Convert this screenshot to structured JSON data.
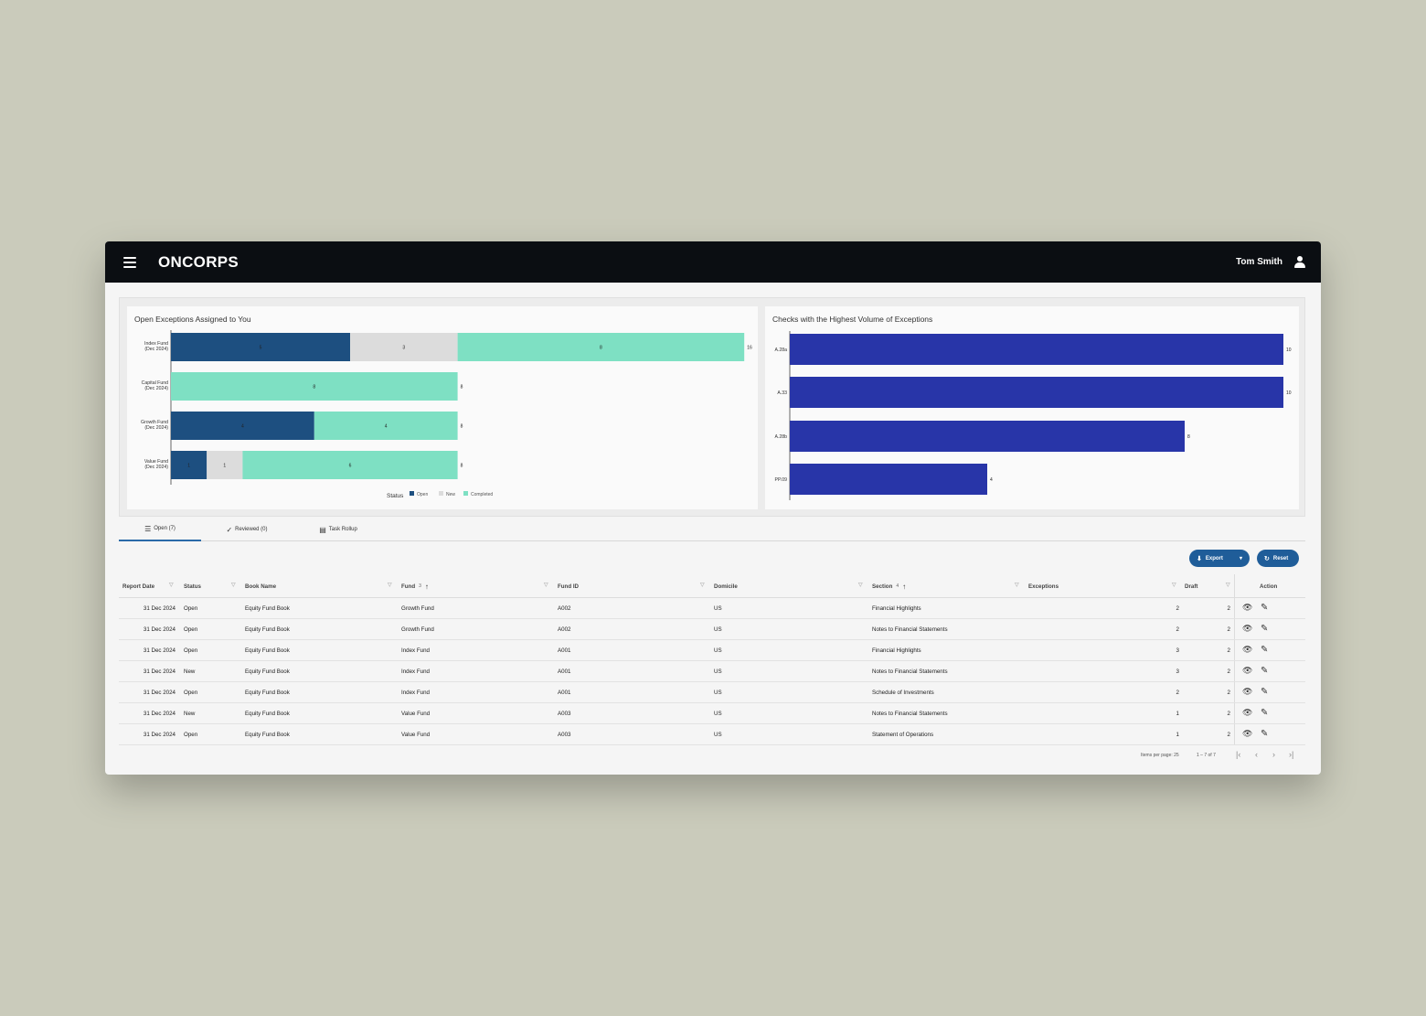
{
  "app": {
    "brand": "ONCORPS",
    "user_name": "Tom Smith"
  },
  "chart_data": [
    {
      "type": "bar",
      "orientation": "horizontal",
      "stacked": true,
      "title": "Open Exceptions Assigned to You",
      "categories": [
        [
          "Index Fund",
          "(Dec 2024)"
        ],
        [
          "Capital Fund",
          "(Dec 2024)"
        ],
        [
          "Growth Fund",
          "(Dec 2024)"
        ],
        [
          "Value Fund",
          "(Dec 2024)"
        ]
      ],
      "series": [
        {
          "name": "Open",
          "color": "#1d4f80",
          "values": [
            5,
            0,
            4,
            1
          ]
        },
        {
          "name": "New",
          "color": "#dcdcdc",
          "values": [
            3,
            0,
            0,
            1
          ]
        },
        {
          "name": "Completed",
          "color": "#7ee0c3",
          "values": [
            8,
            8,
            4,
            6
          ]
        }
      ],
      "totals": [
        16,
        8,
        8,
        8
      ],
      "legend_title": "Status",
      "legend_position": "bottom"
    },
    {
      "type": "bar",
      "orientation": "horizontal",
      "title": "Checks with the Highest Volume of Exceptions",
      "categories": [
        "A.28a",
        "A.33",
        "A.28b",
        "PP.09"
      ],
      "values": [
        10,
        10,
        8,
        4
      ],
      "color": "#2835a8"
    }
  ],
  "tabs": [
    {
      "label": "Open (7)",
      "icon": "list-icon"
    },
    {
      "label": "Reviewed (0)",
      "icon": "check-icon"
    },
    {
      "label": "Task Rollup",
      "icon": "report-icon"
    }
  ],
  "buttons": {
    "export": "Export",
    "reset": "Reset"
  },
  "table": {
    "columns": [
      {
        "label": "Report Date"
      },
      {
        "label": "Status"
      },
      {
        "label": "Book Name"
      },
      {
        "label": "Fund",
        "sort_order": "3"
      },
      {
        "label": "Fund ID"
      },
      {
        "label": "Domicile"
      },
      {
        "label": "Section",
        "sort_order": "4"
      },
      {
        "label": "Exceptions"
      },
      {
        "label": "Draft"
      },
      {
        "label": "Action"
      }
    ],
    "rows": [
      [
        "31 Dec 2024",
        "Open",
        "Equity Fund Book",
        "Growth Fund",
        "A002",
        "US",
        "Financial Highlights",
        "2",
        "2"
      ],
      [
        "31 Dec 2024",
        "Open",
        "Equity Fund Book",
        "Growth Fund",
        "A002",
        "US",
        "Notes to Financial Statements",
        "2",
        "2"
      ],
      [
        "31 Dec 2024",
        "Open",
        "Equity Fund Book",
        "Index Fund",
        "A001",
        "US",
        "Financial Highlights",
        "3",
        "2"
      ],
      [
        "31 Dec 2024",
        "New",
        "Equity Fund Book",
        "Index Fund",
        "A001",
        "US",
        "Notes to Financial Statements",
        "3",
        "2"
      ],
      [
        "31 Dec 2024",
        "Open",
        "Equity Fund Book",
        "Index Fund",
        "A001",
        "US",
        "Schedule of Investments",
        "2",
        "2"
      ],
      [
        "31 Dec 2024",
        "New",
        "Equity Fund Book",
        "Value Fund",
        "A003",
        "US",
        "Notes to Financial Statements",
        "1",
        "2"
      ],
      [
        "31 Dec 2024",
        "Open",
        "Equity Fund Book",
        "Value Fund",
        "A003",
        "US",
        "Statement of Operations",
        "1",
        "2"
      ]
    ]
  },
  "pagination": {
    "items_per_page": "Items per page: 25",
    "range": "1 – 7 of 7"
  }
}
